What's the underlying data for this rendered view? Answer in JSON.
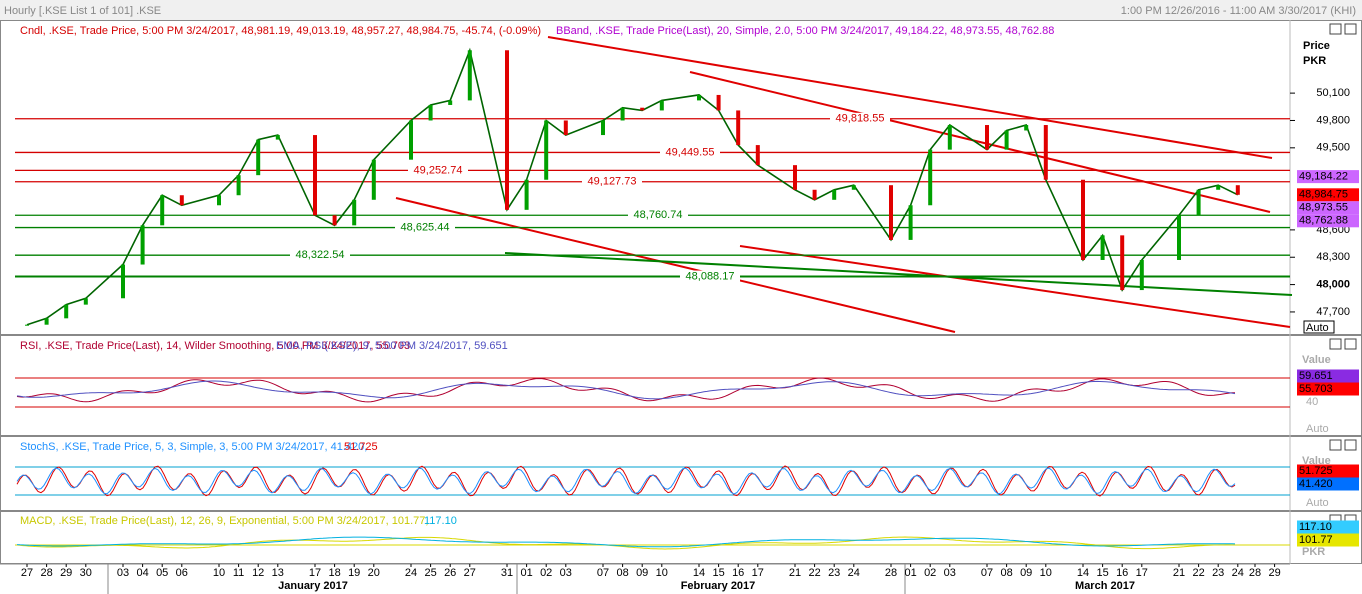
{
  "window": {
    "title": "Hourly [.KSE List 1 of 101] .KSE",
    "range": "1:00 PM 12/26/2016 - 11:00 AM 3/30/2017 (KHI)"
  },
  "price_panel": {
    "header_candle": "Cndl, .KSE, Trade Price, 5:00 PM 3/24/2017, 48,981.19, 49,013.19, 48,957.27, 48,984.75, -45.74, (-0.09%)",
    "header_bband": "BBand, .KSE, Trade Price(Last), 20, Simple, 2.0, 5:00 PM 3/24/2017, 49,184.22, 48,973.55, 48,762.88",
    "axis_title_1": "Price",
    "axis_title_2": "PKR",
    "scale_button": "Auto",
    "ylim": [
      47480,
      50880
    ],
    "yticks": [
      {
        "value": 50100,
        "label": "50,100"
      },
      {
        "value": 49800,
        "label": "49,800"
      },
      {
        "value": 49500,
        "label": "49,500"
      },
      {
        "value": 48600,
        "label": "48,600"
      },
      {
        "value": 48300,
        "label": "48,300"
      },
      {
        "value": 48000,
        "label": "48,000"
      },
      {
        "value": 47700,
        "label": "47,700"
      }
    ],
    "levels": [
      {
        "value": 49818.55,
        "label": "49,818.55",
        "color": "#d40000"
      },
      {
        "value": 49449.55,
        "label": "49,449.55",
        "color": "#d40000"
      },
      {
        "value": 49252.74,
        "label": "49,252.74",
        "color": "#d40000"
      },
      {
        "value": 49127.73,
        "label": "49,127.73",
        "color": "#d40000"
      },
      {
        "value": 48760.74,
        "label": "48,760.74",
        "color": "#008000"
      },
      {
        "value": 48625.44,
        "label": "48,625.44",
        "color": "#008000"
      },
      {
        "value": 48322.54,
        "label": "48,322.54",
        "color": "#008000"
      },
      {
        "value": 48088.17,
        "label": "48,088.17",
        "color": "#008000"
      }
    ],
    "value_boxes": [
      {
        "value": 49184.22,
        "label": "49,184.22",
        "color": "#cc66ff"
      },
      {
        "value": 48984.75,
        "label": "48,984.75",
        "color": "#ff0000"
      },
      {
        "value": 48973.55,
        "label": "48,973.55",
        "color": "#cc66ff"
      },
      {
        "value": 48762.88,
        "label": "48,762.88",
        "color": "#cc66ff"
      }
    ],
    "close": [
      47560,
      47630,
      47780,
      47850,
      48220,
      48650,
      48980,
      48870,
      48980,
      49200,
      49590,
      49640,
      48760,
      48650,
      48930,
      49370,
      49800,
      49970,
      50020,
      50570,
      48820,
      49150,
      49800,
      49640,
      49800,
      49940,
      49910,
      50020,
      50080,
      49910,
      49530,
      49310,
      49040,
      48930,
      49040,
      49090,
      48490,
      48870,
      49480,
      49750,
      49480,
      49690,
      49750,
      49150,
      48270,
      48540,
      47940,
      48270,
      48760,
      49040,
      49090,
      48984.75
    ]
  },
  "rsi_panel": {
    "header_rsi": "RSI, .KSE, Trade Price(Last), 14, Wilder Smoothing, 5:00 PM 3/24/2017, 55.703",
    "header_ema": "EMA, RSI(.KSE), 9, 5:00 PM 3/24/2017, 59.651",
    "value_title": "Value",
    "tick": 40,
    "scale_button": "Auto",
    "value_boxes": [
      {
        "value": 59.651,
        "label": "59.651",
        "color": "#8a2be2"
      },
      {
        "value": 55.703,
        "label": "55.703",
        "color": "#ff0000"
      }
    ]
  },
  "stoch_panel": {
    "header_main": "StochS, .KSE, Trade Price, 5, 3, Simple, 3, 5:00 PM 3/24/2017, 41.420,",
    "header_signal": "51.725",
    "value_title": "Value",
    "scale_button": "Auto",
    "value_boxes": [
      {
        "value": 51.725,
        "label": "51.725",
        "color": "#ff0000"
      },
      {
        "value": 41.42,
        "label": "41.420",
        "color": "#0070ff"
      }
    ]
  },
  "macd_panel": {
    "header_main": "MACD, .KSE, Trade Price(Last), 12, 26, 9, Exponential, 5:00 PM 3/24/2017, 101.77,",
    "header_signal": "117.10",
    "unit": "PKR",
    "value_boxes": [
      {
        "value": 117.1,
        "label": "117.10",
        "color": "#33ccff"
      },
      {
        "value": 101.77,
        "label": "101.77",
        "color": "#e6e600"
      }
    ]
  },
  "x_axis": {
    "days": [
      "27",
      "28",
      "29",
      "30",
      "03",
      "04",
      "05",
      "06",
      "10",
      "11",
      "12",
      "13",
      "17",
      "18",
      "19",
      "20",
      "24",
      "25",
      "26",
      "27",
      "31",
      "01",
      "02",
      "03",
      "07",
      "08",
      "09",
      "10",
      "14",
      "15",
      "16",
      "17",
      "21",
      "22",
      "23",
      "24",
      "28",
      "01",
      "02",
      "03",
      "07",
      "08",
      "09",
      "10",
      "14",
      "15",
      "16",
      "17",
      "21",
      "22",
      "23",
      "24",
      "28",
      "29"
    ],
    "months": [
      "January 2017",
      "February 2017",
      "March 2017"
    ]
  }
}
